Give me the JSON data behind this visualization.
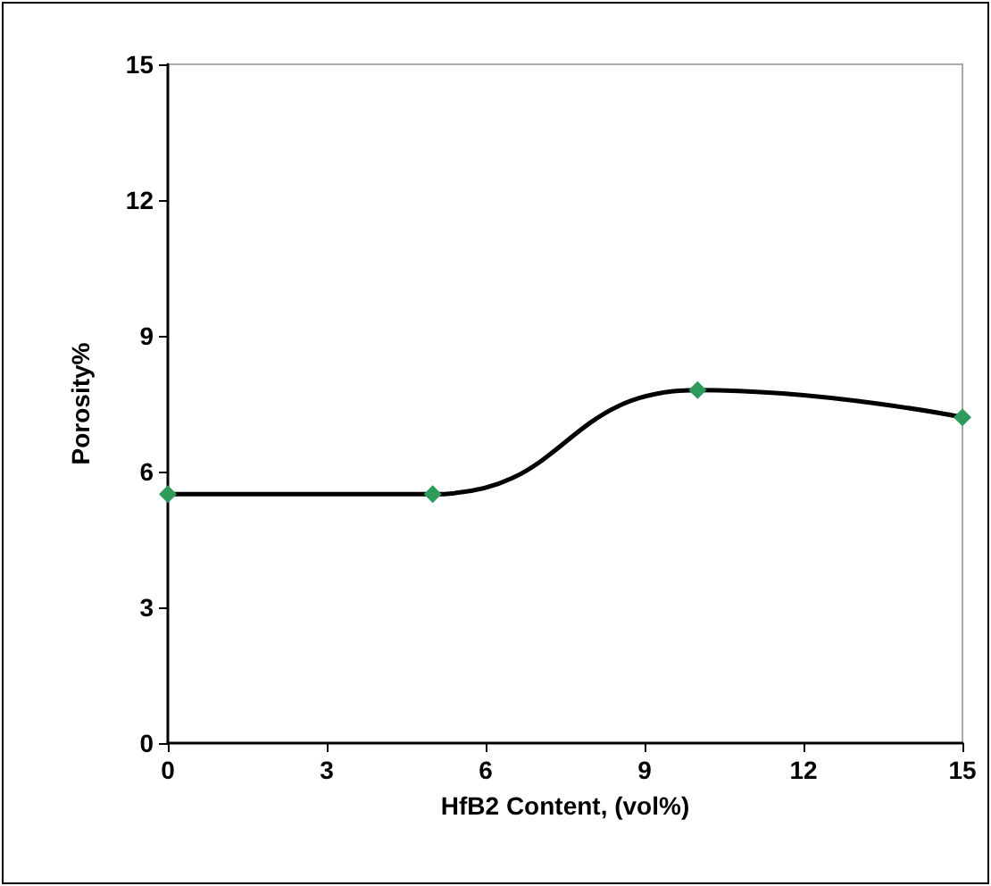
{
  "chart_data": {
    "type": "line",
    "xlabel": "HfB2 Content, (vol%)",
    "ylabel": "Porosity%",
    "x": [
      0,
      5,
      10,
      15
    ],
    "series": [
      {
        "color": "#000000",
        "values": [
          5.5,
          5.5,
          7.8,
          7.2
        ]
      }
    ],
    "xlim": [
      0,
      15
    ],
    "xticks": [
      0,
      3,
      6,
      9,
      12,
      15
    ],
    "ylim": [
      0,
      15
    ],
    "yticks": [
      0,
      3,
      6,
      9,
      12,
      15
    ],
    "grid": false,
    "marker": "diamond",
    "line_style": "solid"
  }
}
